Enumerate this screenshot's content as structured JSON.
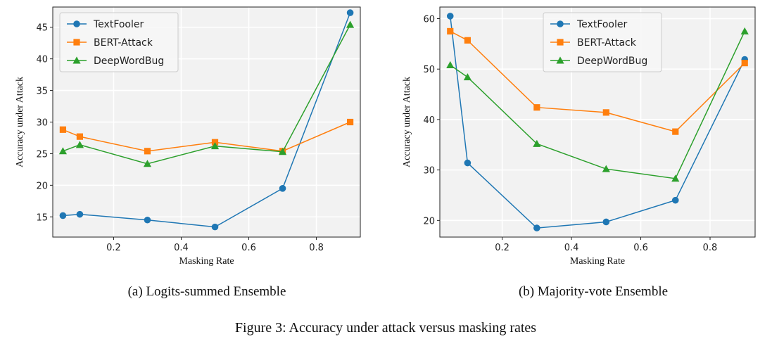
{
  "figure_caption": "Figure 3: Accuracy under attack versus masking rates",
  "colors": {
    "background": "#f2f2f2",
    "grid": "#ffffff",
    "textfooler": "#1f77b4",
    "bert_attack": "#ff7f0e",
    "deepwordbug": "#2ca02c"
  },
  "chart_data": [
    {
      "type": "line",
      "caption": "(a) Logits-summed Ensemble",
      "xlabel": "Masking Rate",
      "ylabel": "Accuracy under Attack",
      "xlim": [
        0.02,
        0.93
      ],
      "ylim": [
        11.8,
        48.2
      ],
      "xticks": [
        0.2,
        0.4,
        0.6,
        0.8
      ],
      "xtick_labels": [
        "0.2",
        "0.4",
        "0.6",
        "0.8"
      ],
      "yticks": [
        15,
        20,
        25,
        30,
        35,
        40,
        45
      ],
      "ytick_labels": [
        "15",
        "20",
        "25",
        "30",
        "35",
        "40",
        "45"
      ],
      "grid": true,
      "legend_position": "top-left",
      "x": [
        0.05,
        0.1,
        0.3,
        0.5,
        0.7,
        0.9
      ],
      "series": [
        {
          "name": "TextFooler",
          "marker": "circle",
          "color": "#1f77b4",
          "values": [
            15.2,
            15.4,
            14.5,
            13.4,
            19.5,
            47.3
          ]
        },
        {
          "name": "BERT-Attack",
          "marker": "square",
          "color": "#ff7f0e",
          "values": [
            28.8,
            27.7,
            25.4,
            26.8,
            25.4,
            30.0
          ]
        },
        {
          "name": "DeepWordBug",
          "marker": "triangle",
          "color": "#2ca02c",
          "values": [
            25.4,
            26.4,
            23.4,
            26.2,
            25.3,
            45.4
          ]
        }
      ]
    },
    {
      "type": "line",
      "caption": "(b) Majority-vote Ensemble",
      "xlabel": "Masking Rate",
      "ylabel": "Accuracy under Attack",
      "xlim": [
        0.02,
        0.93
      ],
      "ylim": [
        16.7,
        62.3
      ],
      "xticks": [
        0.2,
        0.4,
        0.6,
        0.8
      ],
      "xtick_labels": [
        "0.2",
        "0.4",
        "0.6",
        "0.8"
      ],
      "yticks": [
        20,
        30,
        40,
        50,
        60
      ],
      "ytick_labels": [
        "20",
        "30",
        "40",
        "50",
        "60"
      ],
      "grid": true,
      "legend_position": "top-center",
      "x": [
        0.05,
        0.1,
        0.3,
        0.5,
        0.7,
        0.9
      ],
      "series": [
        {
          "name": "TextFooler",
          "marker": "circle",
          "color": "#1f77b4",
          "values": [
            60.5,
            31.4,
            18.5,
            19.7,
            24.0,
            51.9
          ]
        },
        {
          "name": "BERT-Attack",
          "marker": "square",
          "color": "#ff7f0e",
          "values": [
            57.5,
            55.7,
            42.4,
            41.4,
            37.6,
            51.2
          ]
        },
        {
          "name": "DeepWordBug",
          "marker": "triangle",
          "color": "#2ca02c",
          "values": [
            50.8,
            48.4,
            35.2,
            30.2,
            28.3,
            57.5
          ]
        }
      ]
    }
  ]
}
